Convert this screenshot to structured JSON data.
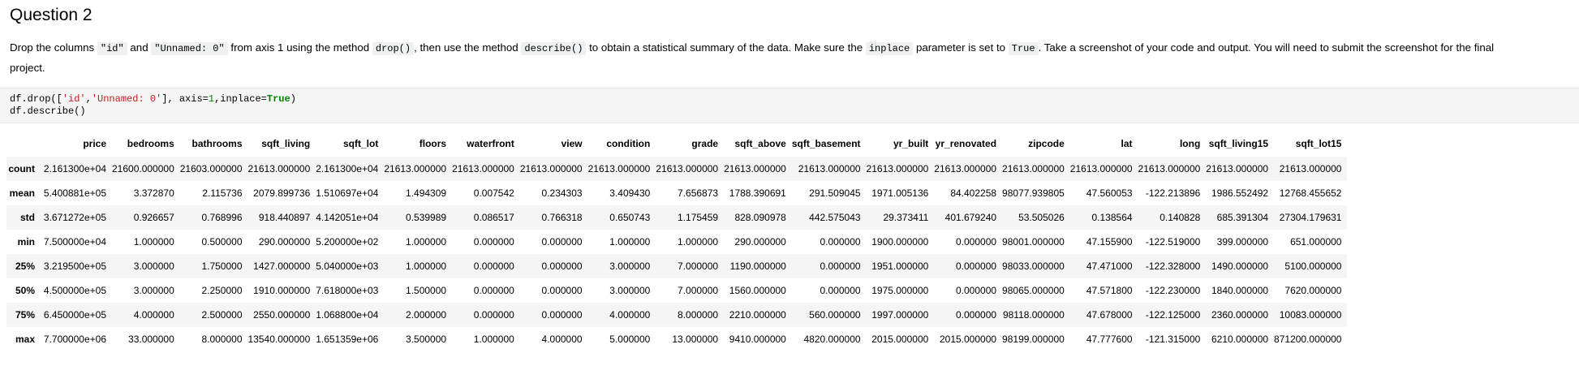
{
  "question": {
    "title": "Question 2"
  },
  "instruction": {
    "p1": "Drop the columns ",
    "c1": "\"id\"",
    "p2": " and ",
    "c2": "\"Unnamed: 0\"",
    "p3": " from axis 1 using the method ",
    "c3": "drop()",
    "p4": ", then use the method ",
    "c4": "describe()",
    "p5": " to obtain a statistical summary of the data. Make sure the ",
    "c5": "inplace",
    "p6": " parameter is set to ",
    "c6": "True",
    "p7": ". Take a screenshot of your code and output. You will need to submit the screenshot for the final",
    "line2": "project."
  },
  "code": {
    "l1_a": "df.drop([",
    "l1_s1": "'id'",
    "l1_b": ",",
    "l1_s2": "'Unnamed: 0'",
    "l1_c": "], axis=",
    "l1_n": "1",
    "l1_d": ",inplace=",
    "l1_k": "True",
    "l1_e": ")",
    "l2": "df.describe()"
  },
  "table": {
    "columns": [
      "price",
      "bedrooms",
      "bathrooms",
      "sqft_living",
      "sqft_lot",
      "floors",
      "waterfront",
      "view",
      "condition",
      "grade",
      "sqft_above",
      "sqft_basement",
      "yr_built",
      "yr_renovated",
      "zipcode",
      "lat",
      "long",
      "sqft_living15",
      "sqft_lot15"
    ],
    "rows": [
      {
        "index": "count",
        "values": [
          "2.161300e+04",
          "21600.000000",
          "21603.000000",
          "21613.000000",
          "2.161300e+04",
          "21613.000000",
          "21613.000000",
          "21613.000000",
          "21613.000000",
          "21613.000000",
          "21613.000000",
          "21613.000000",
          "21613.000000",
          "21613.000000",
          "21613.000000",
          "21613.000000",
          "21613.000000",
          "21613.000000",
          "21613.000000"
        ]
      },
      {
        "index": "mean",
        "values": [
          "5.400881e+05",
          "3.372870",
          "2.115736",
          "2079.899736",
          "1.510697e+04",
          "1.494309",
          "0.007542",
          "0.234303",
          "3.409430",
          "7.656873",
          "1788.390691",
          "291.509045",
          "1971.005136",
          "84.402258",
          "98077.939805",
          "47.560053",
          "-122.213896",
          "1986.552492",
          "12768.455652"
        ]
      },
      {
        "index": "std",
        "values": [
          "3.671272e+05",
          "0.926657",
          "0.768996",
          "918.440897",
          "4.142051e+04",
          "0.539989",
          "0.086517",
          "0.766318",
          "0.650743",
          "1.175459",
          "828.090978",
          "442.575043",
          "29.373411",
          "401.679240",
          "53.505026",
          "0.138564",
          "0.140828",
          "685.391304",
          "27304.179631"
        ]
      },
      {
        "index": "min",
        "values": [
          "7.500000e+04",
          "1.000000",
          "0.500000",
          "290.000000",
          "5.200000e+02",
          "1.000000",
          "0.000000",
          "0.000000",
          "1.000000",
          "1.000000",
          "290.000000",
          "0.000000",
          "1900.000000",
          "0.000000",
          "98001.000000",
          "47.155900",
          "-122.519000",
          "399.000000",
          "651.000000"
        ]
      },
      {
        "index": "25%",
        "values": [
          "3.219500e+05",
          "3.000000",
          "1.750000",
          "1427.000000",
          "5.040000e+03",
          "1.000000",
          "0.000000",
          "0.000000",
          "3.000000",
          "7.000000",
          "1190.000000",
          "0.000000",
          "1951.000000",
          "0.000000",
          "98033.000000",
          "47.471000",
          "-122.328000",
          "1490.000000",
          "5100.000000"
        ]
      },
      {
        "index": "50%",
        "values": [
          "4.500000e+05",
          "3.000000",
          "2.250000",
          "1910.000000",
          "7.618000e+03",
          "1.500000",
          "0.000000",
          "0.000000",
          "3.000000",
          "7.000000",
          "1560.000000",
          "0.000000",
          "1975.000000",
          "0.000000",
          "98065.000000",
          "47.571800",
          "-122.230000",
          "1840.000000",
          "7620.000000"
        ]
      },
      {
        "index": "75%",
        "values": [
          "6.450000e+05",
          "4.000000",
          "2.500000",
          "2550.000000",
          "1.068800e+04",
          "2.000000",
          "0.000000",
          "0.000000",
          "4.000000",
          "8.000000",
          "2210.000000",
          "560.000000",
          "1997.000000",
          "0.000000",
          "98118.000000",
          "47.678000",
          "-122.125000",
          "2360.000000",
          "10083.000000"
        ]
      },
      {
        "index": "max",
        "values": [
          "7.700000e+06",
          "33.000000",
          "8.000000",
          "13540.000000",
          "1.651359e+06",
          "3.500000",
          "1.000000",
          "4.000000",
          "5.000000",
          "13.000000",
          "9410.000000",
          "4820.000000",
          "2015.000000",
          "2015.000000",
          "98199.000000",
          "47.777600",
          "-121.315000",
          "6210.000000",
          "871200.000000"
        ]
      }
    ]
  }
}
